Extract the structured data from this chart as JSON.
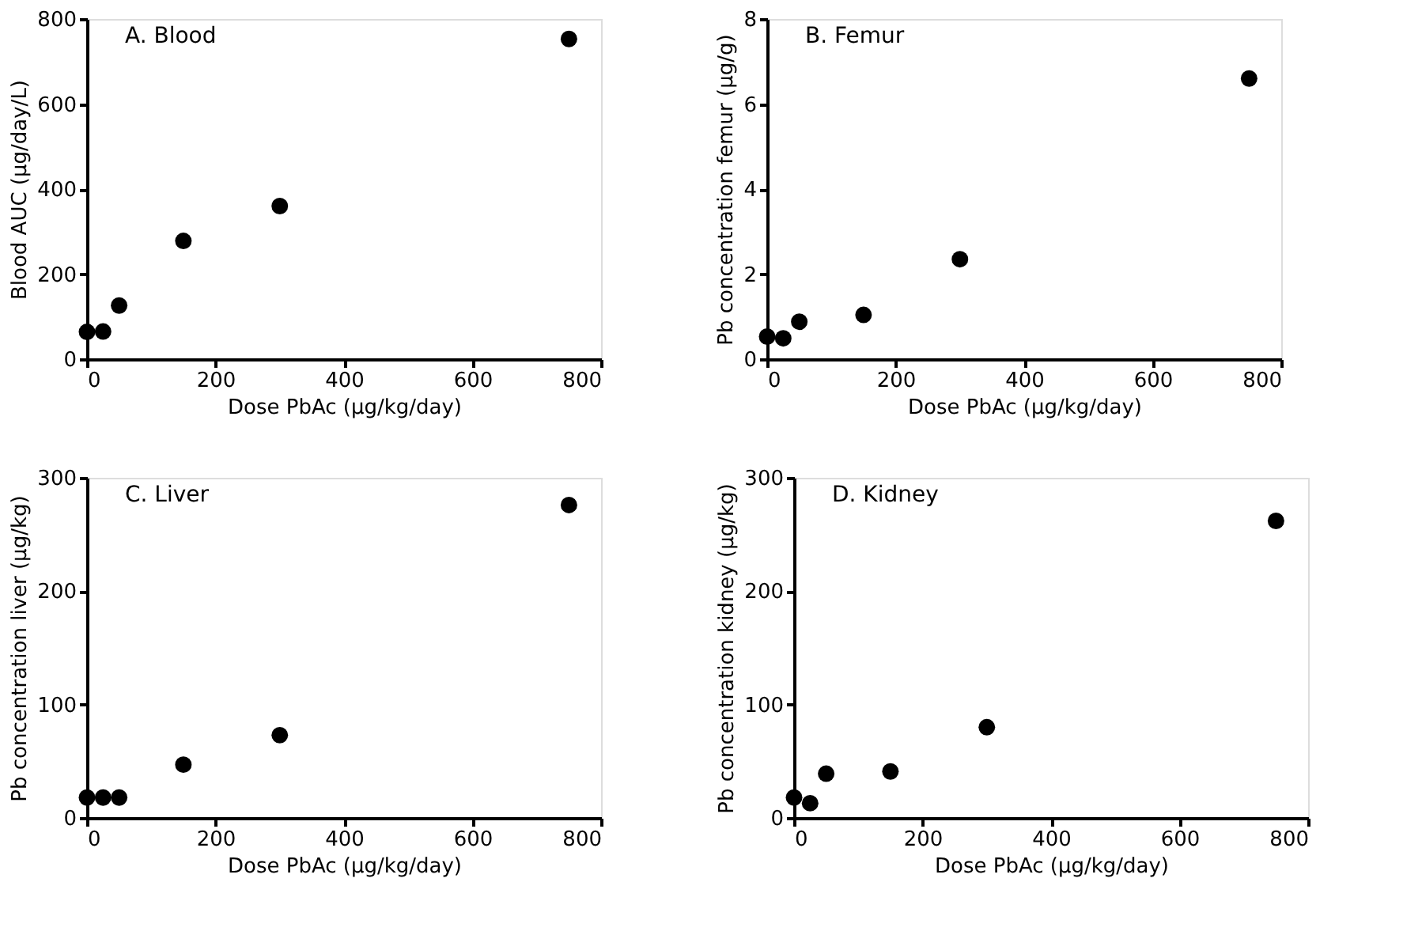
{
  "chart_data": [
    {
      "type": "scatter",
      "title": "A. Blood",
      "xlabel": "Dose PbAc (µg/kg/day)",
      "ylabel": "Blood AUC (µg/day/L)",
      "x": [
        0,
        25,
        50,
        150,
        300,
        750
      ],
      "values": [
        64,
        65,
        126,
        278,
        360,
        753
      ],
      "color": "#000000",
      "marker": "circle",
      "xlim": [
        0,
        800
      ],
      "xticks": [
        0,
        200,
        400,
        600,
        800
      ],
      "ylim": [
        0,
        800
      ],
      "yticks": [
        0,
        200,
        400,
        600,
        800
      ],
      "grid": false
    },
    {
      "type": "scatter",
      "title": "B. Femur",
      "xlabel": "Dose PbAc (µg/kg/day)",
      "ylabel": "Pb concentration femur (µg/g)",
      "x": [
        0,
        25,
        50,
        150,
        300,
        750
      ],
      "values": [
        0.53,
        0.49,
        0.88,
        1.04,
        2.35,
        6.6
      ],
      "color": "#000000",
      "marker": "circle",
      "xlim": [
        0,
        800
      ],
      "xticks": [
        0,
        200,
        400,
        600,
        800
      ],
      "ylim": [
        0,
        8
      ],
      "yticks": [
        0,
        2,
        4,
        6,
        8
      ],
      "grid": false
    },
    {
      "type": "scatter",
      "title": "C. Liver",
      "xlabel": "Dose PbAc (µg/kg/day)",
      "ylabel": "Pb concentration liver (µg/kg)",
      "x": [
        0,
        25,
        50,
        150,
        300,
        750
      ],
      "values": [
        18,
        18,
        18,
        47,
        73,
        276
      ],
      "color": "#000000",
      "marker": "circle",
      "xlim": [
        0,
        800
      ],
      "xticks": [
        0,
        200,
        400,
        600,
        800
      ],
      "ylim": [
        0,
        300
      ],
      "yticks": [
        0,
        100,
        200,
        300
      ],
      "grid": false
    },
    {
      "type": "scatter",
      "title": "D. Kidney",
      "xlabel": "Dose PbAc (µg/kg/day)",
      "ylabel": "Pb concentration kidney (µg/kg)",
      "x": [
        0,
        25,
        50,
        150,
        300,
        750
      ],
      "values": [
        18,
        13,
        39,
        41,
        80,
        262
      ],
      "color": "#000000",
      "marker": "circle",
      "xlim": [
        0,
        800
      ],
      "xticks": [
        0,
        200,
        400,
        600,
        800
      ],
      "ylim": [
        0,
        300
      ],
      "yticks": [
        0,
        100,
        200,
        300
      ],
      "grid": false
    }
  ]
}
